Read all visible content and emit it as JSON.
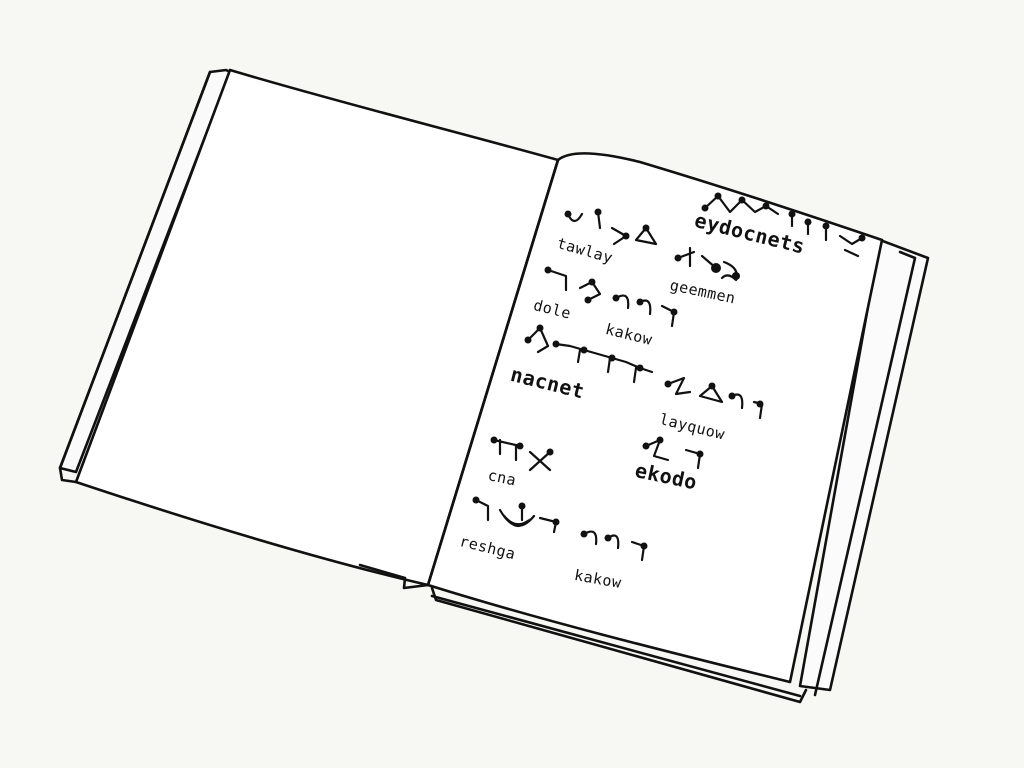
{
  "notebook": {
    "words": [
      {
        "key": "eydocnets",
        "text": "eydocnets"
      },
      {
        "key": "tawlay",
        "text": "tawlay"
      },
      {
        "key": "geemmen",
        "text": "geemmen"
      },
      {
        "key": "dole",
        "text": "dole"
      },
      {
        "key": "kakow_1",
        "text": "kakow"
      },
      {
        "key": "nacnet",
        "text": "nacnet"
      },
      {
        "key": "layquow",
        "text": "layquow"
      },
      {
        "key": "cna",
        "text": "cna"
      },
      {
        "key": "ekodo",
        "text": "ekodo"
      },
      {
        "key": "reshga",
        "text": "reshga"
      },
      {
        "key": "kakow_2",
        "text": "kakow"
      }
    ]
  },
  "colors": {
    "ink": "#111111",
    "paper": "#f7f7f3",
    "page": "#ffffff"
  },
  "icons": [
    "open-book-drawing",
    "alien-glyph-row"
  ]
}
